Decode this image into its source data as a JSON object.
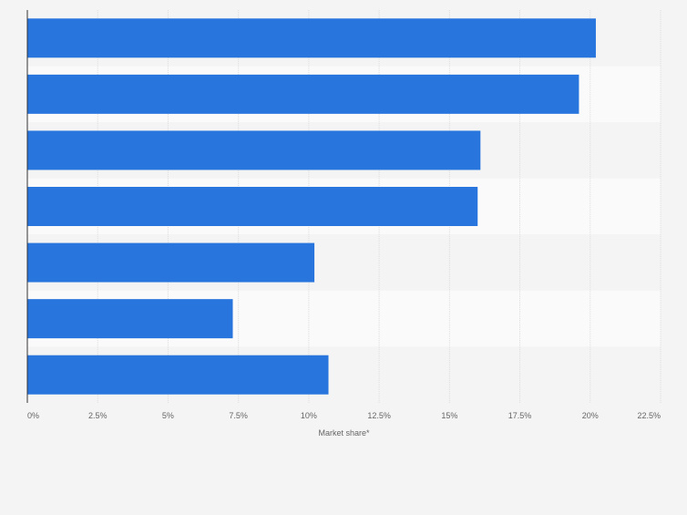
{
  "chart_data": {
    "type": "bar",
    "orientation": "horizontal",
    "categories": [
      "",
      "",
      "",
      "",
      "",
      "",
      ""
    ],
    "values": [
      20.2,
      19.6,
      16.1,
      16.0,
      10.2,
      7.3,
      10.7
    ],
    "xlabel": "Market share*",
    "ylabel": "",
    "xlim": [
      0,
      22.5
    ],
    "tick_values": [
      0,
      2.5,
      5,
      7.5,
      10,
      12.5,
      15,
      17.5,
      20,
      22.5
    ],
    "tick_labels": [
      "0%",
      "2.5%",
      "5%",
      "7.5%",
      "10%",
      "12.5%",
      "15%",
      "17.5%",
      "20%",
      "22.5%"
    ],
    "grid": true,
    "legend": "none",
    "colors": {
      "bar": "#2876dd",
      "background": "#f4f4f4",
      "band_light": "#fafafa",
      "band_dark": "#f4f4f4",
      "grid": "#dddddd",
      "axis": "#333333",
      "tick_text": "#666666"
    }
  }
}
